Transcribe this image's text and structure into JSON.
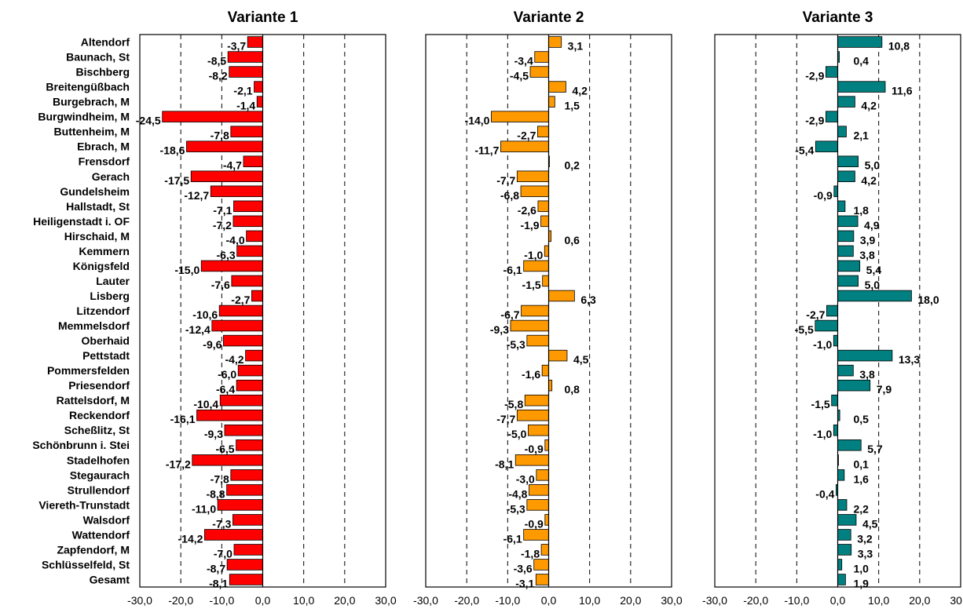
{
  "chart_data": {
    "type": "bar",
    "orientation": "horizontal",
    "categories": [
      "Altendorf",
      "Baunach, St",
      "Bischberg",
      "Breitengüßbach",
      "Burgebrach, M",
      "Burgwindheim, M",
      "Buttenheim, M",
      "Ebrach, M",
      "Frensdorf",
      "Gerach",
      "Gundelsheim",
      "Hallstadt, St",
      "Heiligenstadt i. OF",
      "Hirschaid, M",
      "Kemmern",
      "Königsfeld",
      "Lauter",
      "Lisberg",
      "Litzendorf",
      "Memmelsdorf",
      "Oberhaid",
      "Pettstadt",
      "Pommersfelden",
      "Priesendorf",
      "Rattelsdorf, M",
      "Reckendorf",
      "Scheßlitz, St",
      "Schönbrunn i. Stei",
      "Stadelhofen",
      "Stegaurach",
      "Strullendorf",
      "Viereth-Trunstadt",
      "Walsdorf",
      "Wattendorf",
      "Zapfendorf, M",
      "Schlüsselfeld, St",
      "Gesamt"
    ],
    "xlim": [
      -30,
      30
    ],
    "ticks": [
      -30,
      -20,
      -10,
      0,
      10,
      20,
      30
    ],
    "tick_labels": [
      "-30,0",
      "-20,0",
      "-10,0",
      "0,0",
      "10,0",
      "20,0",
      "30,0"
    ],
    "grid": "vertical dashed",
    "panels": [
      {
        "title": "Variante 1",
        "color": "#ff0000",
        "values": [
          -3.7,
          -8.5,
          -8.2,
          -2.1,
          -1.4,
          -24.5,
          -7.8,
          -18.6,
          -4.7,
          -17.5,
          -12.7,
          -7.1,
          -7.2,
          -4.0,
          -6.3,
          -15.0,
          -7.6,
          -2.7,
          -10.6,
          -12.4,
          -9.6,
          -4.2,
          -6.0,
          -6.4,
          -10.4,
          -16.1,
          -9.3,
          -6.5,
          -17.2,
          -7.8,
          -8.8,
          -11.0,
          -7.3,
          -14.2,
          -7.0,
          -8.7,
          -8.1
        ],
        "labels": [
          "-3,7",
          "-8,5",
          "-8,2",
          "-2,1",
          "-1,4",
          "-24,5",
          "-7,8",
          "-18,6",
          "-4,7",
          "-17,5",
          "-12,7",
          "-7,1",
          "-7,2",
          "-4,0",
          "-6,3",
          "-15,0",
          "-7,6",
          "-2,7",
          "-10,6",
          "-12,4",
          "-9,6",
          "-4,2",
          "-6,0",
          "-6,4",
          "-10,4",
          "-16,1",
          "-9,3",
          "-6,5",
          "-17,2",
          "-7,8",
          "-8,8",
          "-11,0",
          "-7,3",
          "-14,2",
          "-7,0",
          "-8,7",
          "-8,1"
        ]
      },
      {
        "title": "Variante 2",
        "color": "#ff9900",
        "values": [
          3.1,
          -3.4,
          -4.5,
          4.2,
          1.5,
          -14.0,
          -2.7,
          -11.7,
          0.2,
          -7.7,
          -6.8,
          -2.6,
          -1.9,
          0.6,
          -1.0,
          -6.1,
          -1.5,
          6.3,
          -6.7,
          -9.3,
          -5.3,
          4.5,
          -1.6,
          0.8,
          -5.8,
          -7.7,
          -5.0,
          -0.9,
          -8.1,
          -3.0,
          -4.8,
          -5.3,
          -0.9,
          -6.1,
          -1.8,
          -3.6,
          -3.1
        ],
        "labels": [
          "3,1",
          "-3,4",
          "-4,5",
          "4,2",
          "1,5",
          "-14,0",
          "-2,7",
          "-11,7",
          "0,2",
          "-7,7",
          "-6,8",
          "-2,6",
          "-1,9",
          "0,6",
          "-1,0",
          "-6,1",
          "-1,5",
          "6,3",
          "-6,7",
          "-9,3",
          "-5,3",
          "4,5",
          "-1,6",
          "0,8",
          "-5,8",
          "-7,7",
          "-5,0",
          "-0,9",
          "-8,1",
          "-3,0",
          "-4,8",
          "-5,3",
          "-0,9",
          "-6,1",
          "-1,8",
          "-3,6",
          "-3,1"
        ]
      },
      {
        "title": "Variante 3",
        "color": "#008080",
        "values": [
          10.8,
          0.4,
          -2.9,
          11.6,
          4.2,
          -2.9,
          2.1,
          -5.4,
          5.0,
          4.2,
          -0.9,
          1.8,
          4.9,
          3.9,
          3.8,
          5.4,
          5.0,
          18.0,
          -2.7,
          -5.5,
          -1.0,
          13.3,
          3.8,
          7.9,
          -1.5,
          0.5,
          -1.0,
          5.7,
          0.1,
          1.6,
          -0.4,
          2.2,
          4.5,
          3.2,
          3.3,
          1.0,
          1.9
        ],
        "labels": [
          "10,8",
          "0,4",
          "-2,9",
          "11,6",
          "4,2",
          "-2,9",
          "2,1",
          "-5,4",
          "5,0",
          "4,2",
          "-0,9",
          "1,8",
          "4,9",
          "3,9",
          "3,8",
          "5,4",
          "5,0",
          "18,0",
          "-2,7",
          "-5,5",
          "-1,0",
          "13,3",
          "3,8",
          "7,9",
          "-1,5",
          "0,5",
          "-1,0",
          "5,7",
          "0,1",
          "1,6",
          "-0,4",
          "2,2",
          "4,5",
          "3,2",
          "3,3",
          "1,0",
          "1,9"
        ]
      }
    ]
  }
}
